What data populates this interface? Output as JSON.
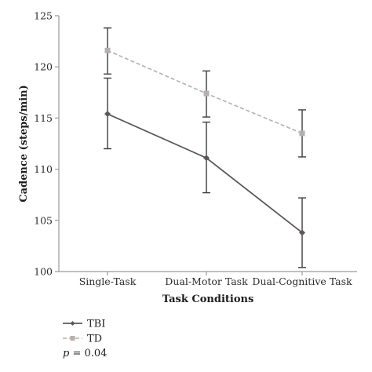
{
  "chart_data": {
    "type": "line",
    "categories": [
      "Single-Task",
      "Dual-Motor Task",
      "Dual-Cognitive Task"
    ],
    "xlabel": "Task Conditions",
    "ylabel": "Cadence (steps/min)",
    "ylim": [
      100,
      125
    ],
    "yticks": [
      "100",
      "105",
      "110",
      "115",
      "120",
      "125"
    ],
    "grid": false,
    "legend_position": "bottom-left",
    "series": [
      {
        "name": "TBI",
        "values": [
          115.4,
          111.1,
          103.8
        ],
        "error_low": [
          112.0,
          107.7,
          100.4
        ],
        "error_high": [
          118.9,
          114.6,
          107.2
        ],
        "color": "#5e5858",
        "dashed": false,
        "marker": "diamond"
      },
      {
        "name": "TD",
        "values": [
          121.6,
          117.4,
          113.5
        ],
        "error_low": [
          119.3,
          115.1,
          111.2
        ],
        "error_high": [
          123.8,
          119.6,
          115.8
        ],
        "color": "#b7aeae",
        "dashed": true,
        "marker": "square"
      }
    ],
    "annotation": {
      "italic": "p",
      "rest": " = 0.04"
    }
  }
}
